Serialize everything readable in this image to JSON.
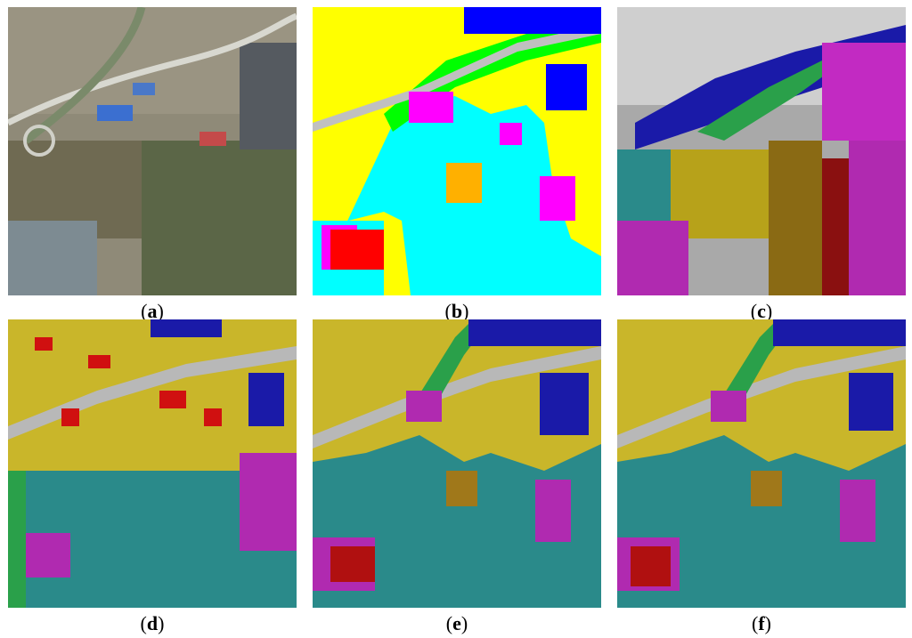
{
  "figure": {
    "panels": [
      {
        "id": "a",
        "caption_open": "(",
        "caption_letter": "a",
        "caption_close": ")",
        "kind": "satellite"
      },
      {
        "id": "b",
        "caption_open": "(",
        "caption_letter": "b",
        "caption_close": ")",
        "kind": "label-map"
      },
      {
        "id": "c",
        "caption_open": "(",
        "caption_letter": "c",
        "caption_close": ")",
        "kind": "overlay"
      },
      {
        "id": "d",
        "caption_open": "(",
        "caption_letter": "d",
        "caption_close": ")",
        "kind": "overlay"
      },
      {
        "id": "e",
        "caption_open": "(",
        "caption_letter": "e",
        "caption_close": ")",
        "kind": "overlay"
      },
      {
        "id": "f",
        "caption_open": "(",
        "caption_letter": "f",
        "caption_close": ")",
        "kind": "overlay"
      }
    ],
    "class_colors": {
      "yellow": "#ffff00",
      "cyan": "#00ffff",
      "magenta": "#ff00ff",
      "red": "#ff0000",
      "blue": "#0000ff",
      "green": "#00ff00",
      "orange": "#ffb000",
      "gray": "#c0c0c0"
    }
  }
}
